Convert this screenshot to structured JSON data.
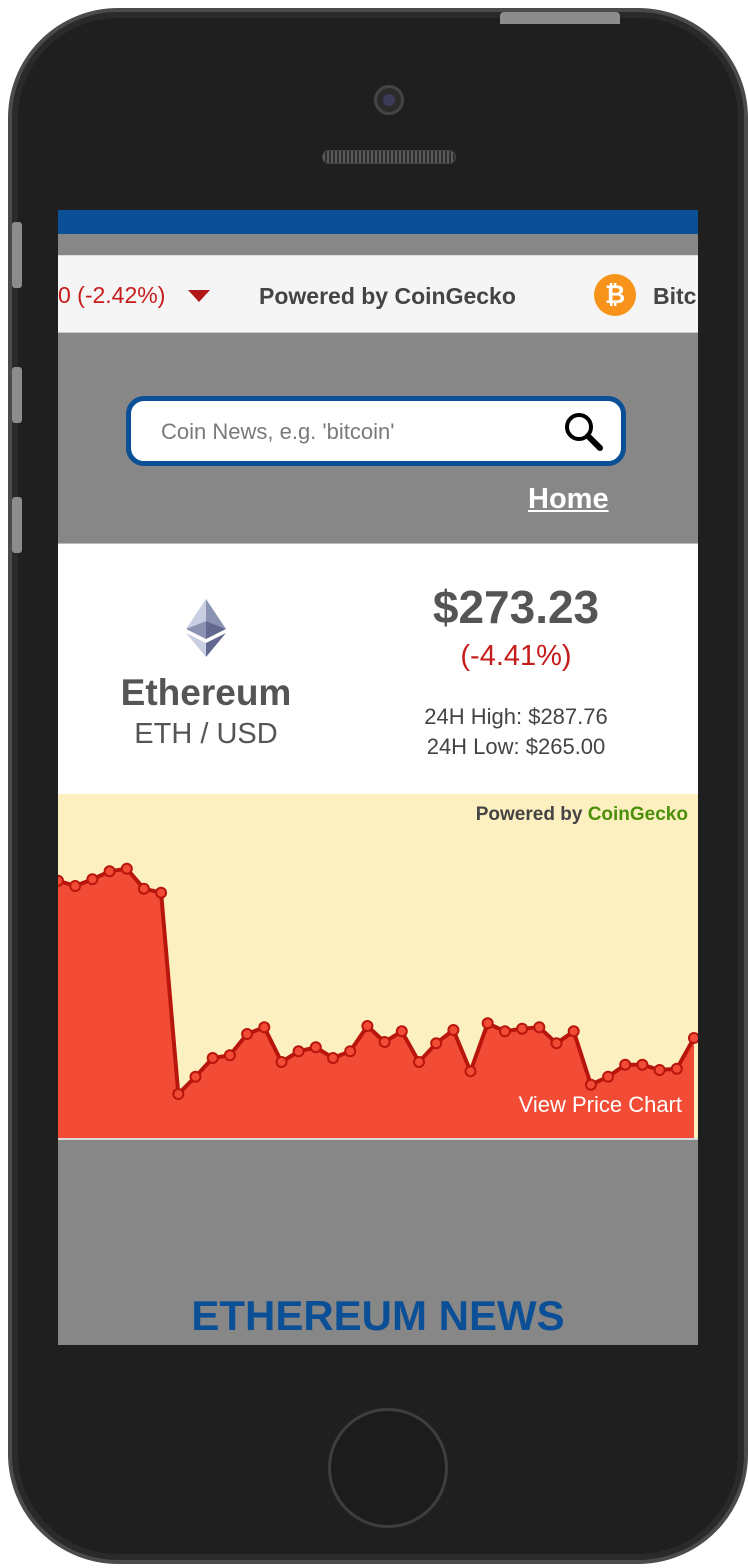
{
  "ticker": {
    "change_text": "0 (-2.42%)",
    "powered_label": "Powered by CoinGecko",
    "next_coin_label": "Bitc",
    "bitcoin_symbol": "₿"
  },
  "search": {
    "placeholder": "Coin News, e.g. 'bitcoin'"
  },
  "nav": {
    "home_label": "Home"
  },
  "coin": {
    "name": "Ethereum",
    "pair": "ETH / USD",
    "price": "$273.23",
    "change": "(-4.41%)",
    "high": "24H High: $287.76",
    "low": "24H Low: $265.00"
  },
  "chart": {
    "powered_prefix": "Powered by",
    "powered_brand": "CoinGecko",
    "view_label": "View Price Chart"
  },
  "chart_data": {
    "type": "area",
    "title": "",
    "xlabel": "",
    "ylabel": "",
    "values": [
      283.5,
      283.1,
      283.6,
      284.2,
      284.4,
      282.9,
      282.6,
      267.5,
      268.8,
      270.2,
      270.4,
      272.0,
      272.5,
      269.9,
      270.7,
      271.0,
      270.2,
      270.7,
      272.6,
      271.4,
      272.2,
      269.9,
      271.3,
      272.3,
      269.2,
      272.8,
      272.2,
      272.4,
      272.5,
      271.3,
      272.2,
      268.2,
      268.8,
      269.7,
      269.7,
      269.3,
      269.4,
      271.7
    ],
    "ylim": [
      266,
      287
    ],
    "colors": {
      "fill": "#f24c36",
      "line": "#b8160d",
      "point": "#f24c36",
      "background": "#fdf0c0"
    }
  },
  "news": {
    "title": "ETHEREUM NEWS"
  },
  "colors": {
    "brand_blue": "#0b4f97",
    "negative_red": "#c51c1c",
    "bitcoin_orange": "#f7931a"
  }
}
